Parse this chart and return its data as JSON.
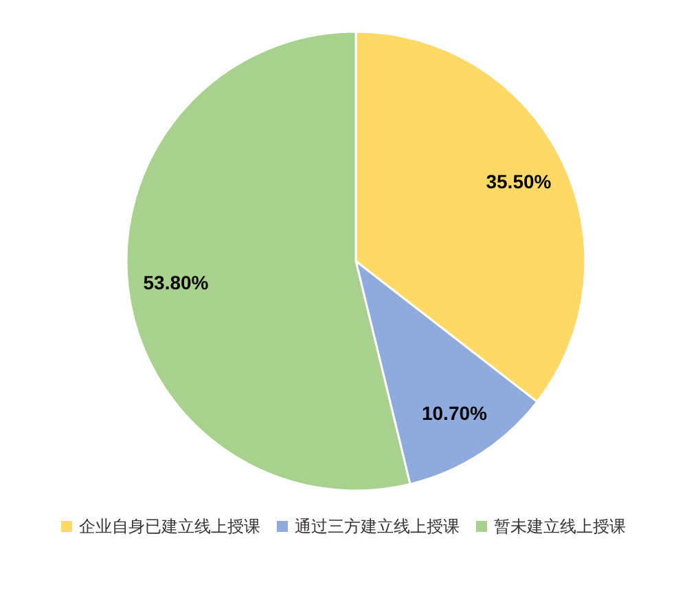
{
  "chart_data": {
    "type": "pie",
    "categories": [
      "企业自身已建立线上授课",
      "通过三方建立线上授课",
      "暂未建立线上授课"
    ],
    "values": [
      35.5,
      10.7,
      53.8
    ],
    "value_labels": [
      "35.50%",
      "10.70%",
      "53.80%"
    ],
    "colors": [
      "#ffd966",
      "#8faadc",
      "#a9d18e"
    ],
    "legend": "bottom"
  }
}
